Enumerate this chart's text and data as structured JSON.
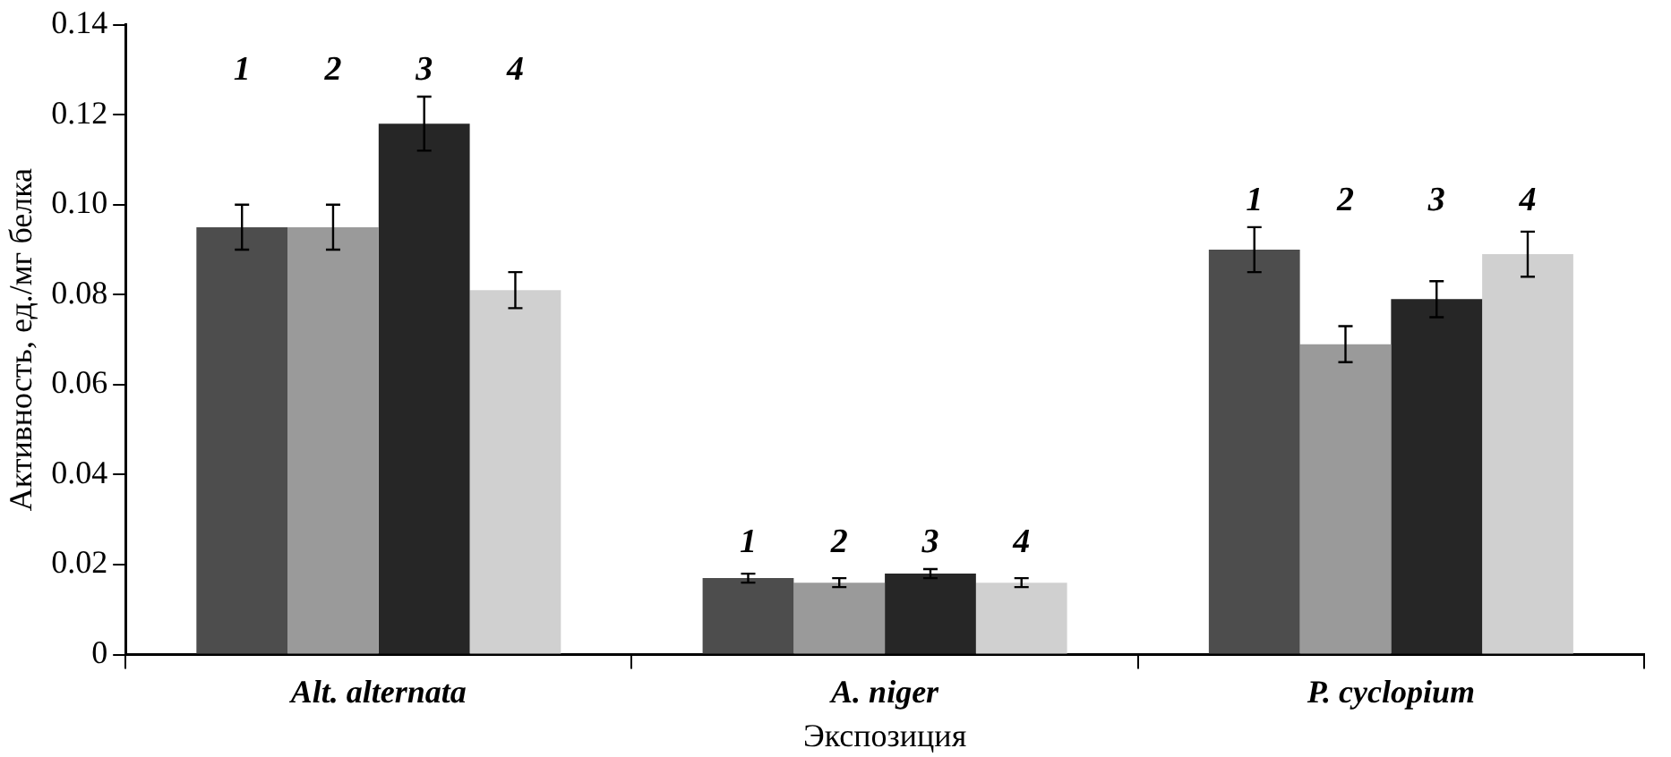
{
  "chart_data": {
    "type": "bar",
    "xlabel": "Экспозиция",
    "ylabel": "Активность, ед./мг белка",
    "categories": [
      "Alt. alternata",
      "A. niger",
      "P. cyclopium"
    ],
    "series": [
      {
        "name": "1",
        "color": "#4d4d4d",
        "values": [
          0.095,
          0.017,
          0.09
        ],
        "errors": [
          0.005,
          0.001,
          0.005
        ]
      },
      {
        "name": "2",
        "color": "#9a9a9a",
        "values": [
          0.095,
          0.016,
          0.069
        ],
        "errors": [
          0.005,
          0.001,
          0.004
        ]
      },
      {
        "name": "3",
        "color": "#262626",
        "values": [
          0.118,
          0.018,
          0.079
        ],
        "errors": [
          0.006,
          0.001,
          0.004
        ]
      },
      {
        "name": "4",
        "color": "#d0d0d0",
        "values": [
          0.081,
          0.016,
          0.089
        ],
        "errors": [
          0.004,
          0.001,
          0.005
        ]
      }
    ],
    "ylim": [
      0,
      0.14
    ],
    "yticks": [
      0,
      0.02,
      0.04,
      0.06,
      0.08,
      {
        "value": 0.1,
        "label": "0.10"
      },
      0.12,
      0.14
    ],
    "grid": false,
    "legend": false
  }
}
